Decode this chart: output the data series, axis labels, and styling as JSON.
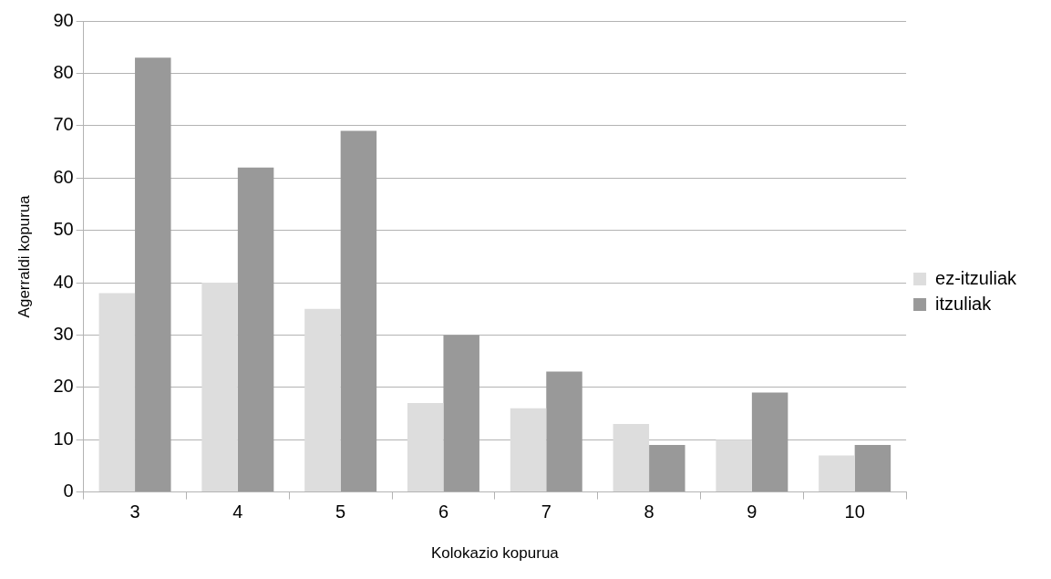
{
  "chart_data": {
    "type": "bar",
    "xlabel": "Kolokazio kopurua",
    "ylabel": "Agerraldi kopurua",
    "categories": [
      "3",
      "4",
      "5",
      "6",
      "7",
      "8",
      "9",
      "10"
    ],
    "series": [
      {
        "name": "ez-itzuliak",
        "color": "#dddddd",
        "values": [
          38,
          40,
          35,
          17,
          16,
          13,
          10,
          7
        ]
      },
      {
        "name": "itzuliak",
        "color": "#999999",
        "values": [
          83,
          62,
          69,
          30,
          23,
          9,
          19,
          9
        ]
      }
    ],
    "ylim": [
      0,
      90
    ],
    "yticks": [
      0,
      10,
      20,
      30,
      40,
      50,
      60,
      70,
      80,
      90
    ],
    "grid": "y",
    "legend": "right"
  }
}
